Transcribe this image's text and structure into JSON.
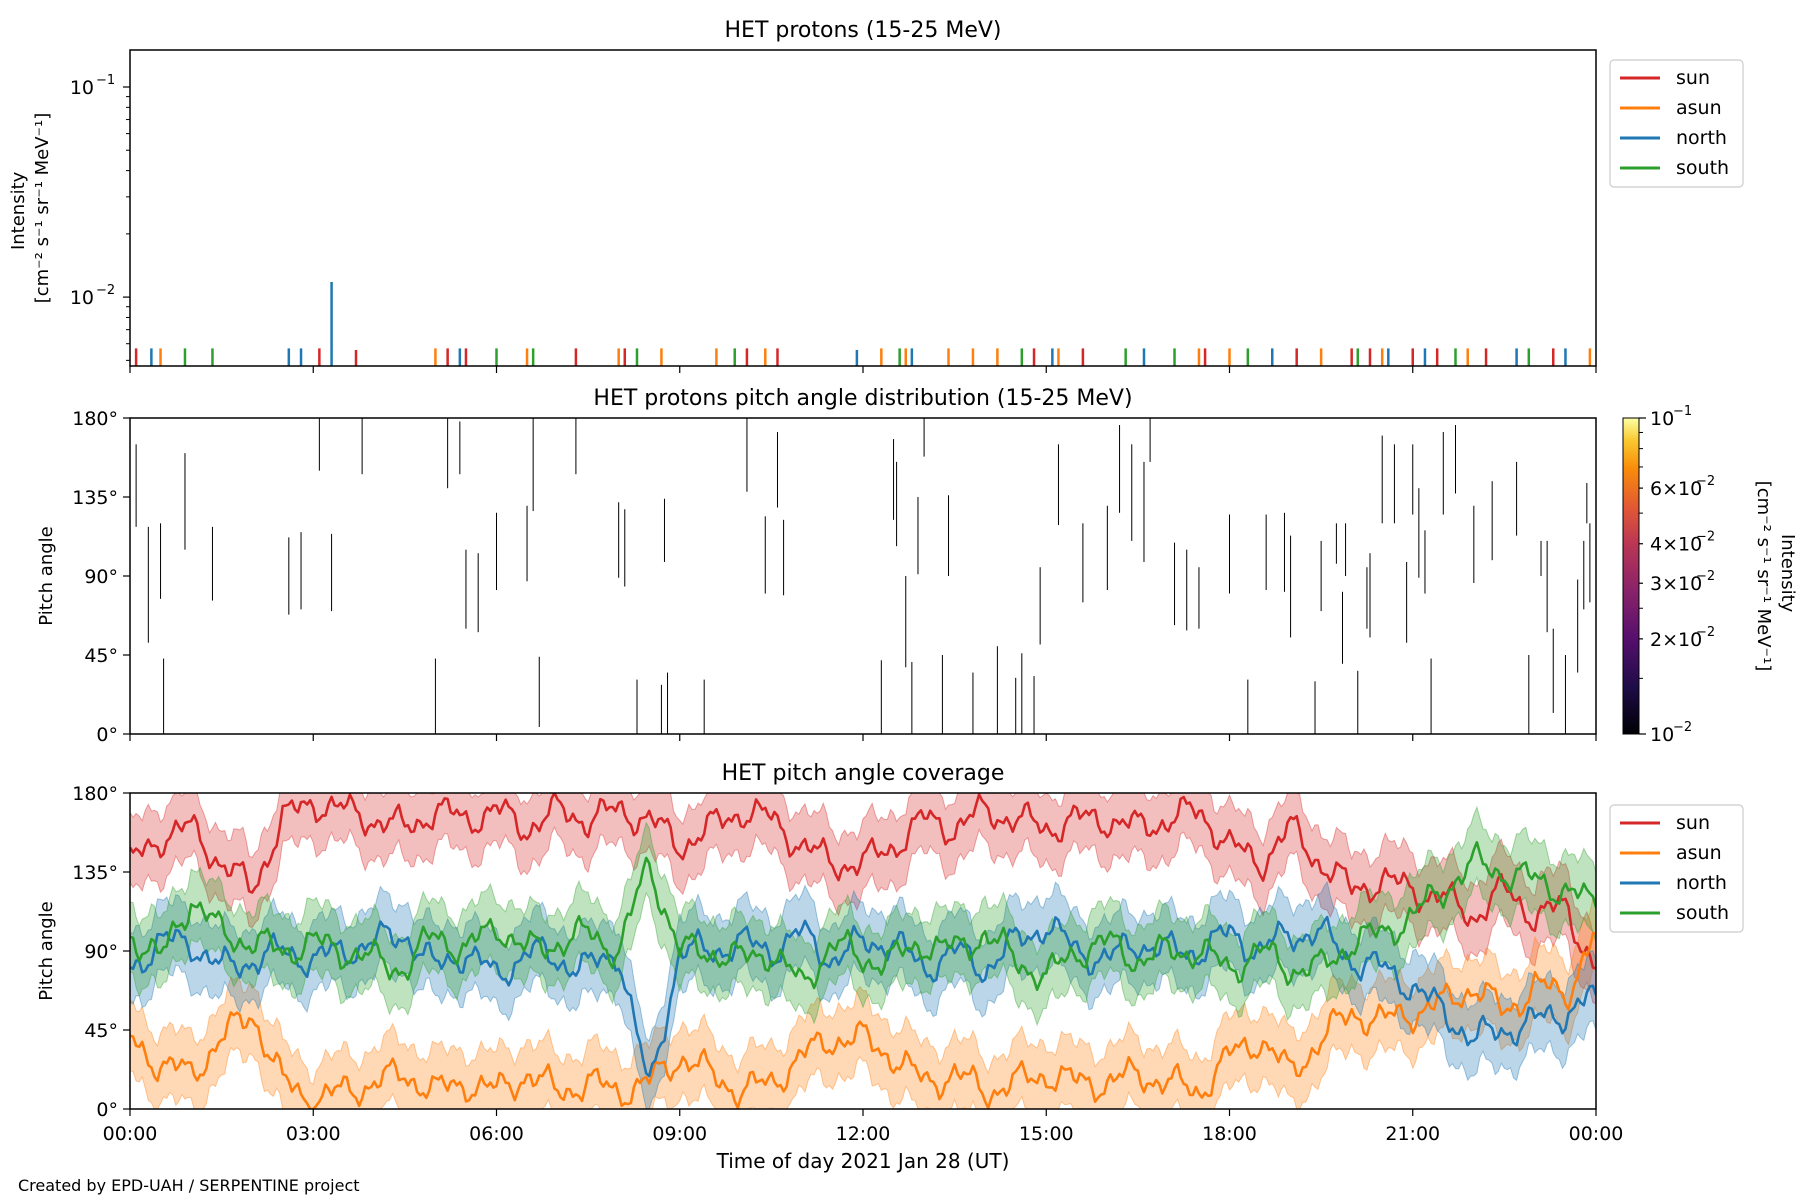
{
  "footer": "Created by EPD-UAH / SERPENTINE project",
  "colors": {
    "sun": "#d62728",
    "asun": "#ff7f0e",
    "north": "#1f77b4",
    "south": "#2ca02c"
  },
  "chart_data": [
    {
      "type": "line",
      "title": "HET protons (15-25 MeV)",
      "ylabel": "Intensity [cm⁻² s⁻¹ sr⁻¹ MeV⁻¹]",
      "ylabel_line1": "Intensity",
      "ylabel_line2": "[cm⁻² s⁻¹ sr⁻¹ MeV⁻¹]",
      "yscale": "log",
      "ylim": [
        0.0047,
        0.15
      ],
      "yticks": [
        {
          "value": 0.1,
          "base": "10",
          "exp": "−1"
        },
        {
          "value": 0.01,
          "base": "10",
          "exp": "−2"
        }
      ],
      "xlim_hours": [
        0,
        24
      ],
      "legend_position": "upper right outside",
      "legend": [
        "sun",
        "asun",
        "north",
        "south"
      ],
      "series": [
        {
          "name": "sun",
          "spikes": [
            [
              0.1,
              0.0057
            ],
            [
              3.1,
              0.0057
            ],
            [
              3.7,
              0.0056
            ],
            [
              5.2,
              0.0057
            ],
            [
              5.5,
              0.0057
            ],
            [
              7.3,
              0.0057
            ],
            [
              8.1,
              0.0057
            ],
            [
              10.1,
              0.0057
            ],
            [
              10.6,
              0.0057
            ],
            [
              14.8,
              0.0057
            ],
            [
              15.6,
              0.0057
            ],
            [
              17.6,
              0.0057
            ],
            [
              19.1,
              0.0057
            ],
            [
              20.0,
              0.0057
            ],
            [
              20.3,
              0.0057
            ],
            [
              21.0,
              0.0057
            ],
            [
              21.4,
              0.0057
            ],
            [
              22.2,
              0.0057
            ],
            [
              23.3,
              0.0057
            ]
          ]
        },
        {
          "name": "asun",
          "spikes": [
            [
              0.5,
              0.0057
            ],
            [
              5.0,
              0.0057
            ],
            [
              6.5,
              0.0057
            ],
            [
              8.0,
              0.0057
            ],
            [
              8.7,
              0.0057
            ],
            [
              9.6,
              0.0057
            ],
            [
              10.4,
              0.0057
            ],
            [
              12.3,
              0.0057
            ],
            [
              12.7,
              0.0057
            ],
            [
              13.4,
              0.0057
            ],
            [
              13.8,
              0.0057
            ],
            [
              14.2,
              0.0057
            ],
            [
              15.2,
              0.0057
            ],
            [
              17.5,
              0.0057
            ],
            [
              18.0,
              0.0057
            ],
            [
              19.5,
              0.0057
            ],
            [
              20.5,
              0.0057
            ],
            [
              21.9,
              0.0057
            ],
            [
              23.9,
              0.0057
            ]
          ]
        },
        {
          "name": "north",
          "spikes": [
            [
              0.35,
              0.0057
            ],
            [
              2.6,
              0.0057
            ],
            [
              2.8,
              0.0057
            ],
            [
              3.3,
              0.0118
            ],
            [
              5.4,
              0.0057
            ],
            [
              11.9,
              0.0056
            ],
            [
              12.8,
              0.0057
            ],
            [
              15.1,
              0.0057
            ],
            [
              16.6,
              0.0057
            ],
            [
              18.7,
              0.0057
            ],
            [
              20.6,
              0.0057
            ],
            [
              21.2,
              0.0057
            ],
            [
              22.7,
              0.0057
            ],
            [
              23.5,
              0.0057
            ]
          ]
        },
        {
          "name": "south",
          "spikes": [
            [
              0.9,
              0.0057
            ],
            [
              1.35,
              0.0057
            ],
            [
              6.0,
              0.0057
            ],
            [
              6.6,
              0.0057
            ],
            [
              8.3,
              0.0057
            ],
            [
              9.9,
              0.0057
            ],
            [
              12.6,
              0.0057
            ],
            [
              14.6,
              0.0057
            ],
            [
              16.3,
              0.0057
            ],
            [
              17.1,
              0.0057
            ],
            [
              18.3,
              0.0057
            ],
            [
              20.1,
              0.0057
            ],
            [
              21.7,
              0.0057
            ],
            [
              22.9,
              0.0057
            ]
          ]
        }
      ]
    },
    {
      "type": "heatmap",
      "title": "HET protons pitch angle distribution (15-25 MeV)",
      "ylabel": "Pitch angle",
      "ylim": [
        0,
        180
      ],
      "yticks": [
        "0°",
        "45°",
        "90°",
        "135°",
        "180°"
      ],
      "xlim_hours": [
        0,
        24
      ],
      "colorbar_label": "Intensity [cm⁻² s⁻¹ sr⁻¹ MeV⁻¹]",
      "colorbar_label_line1": "Intensity",
      "colorbar_label_line2": "[cm⁻² s⁻¹ sr⁻¹ MeV⁻¹]",
      "colorbar_scale": "log",
      "colorbar_range": [
        0.01,
        0.1
      ],
      "colorbar_ticks": [
        {
          "value": 0.1,
          "label": "10",
          "exp": "−1"
        },
        {
          "value": 0.06,
          "label": "6×10",
          "exp": "−2"
        },
        {
          "value": 0.04,
          "label": "4×10",
          "exp": "−2"
        },
        {
          "value": 0.03,
          "label": "3×10",
          "exp": "−2"
        },
        {
          "value": 0.02,
          "label": "2×10",
          "exp": "−2"
        },
        {
          "value": 0.01,
          "label": "10",
          "exp": "−2"
        }
      ],
      "segments": [
        [
          0.1,
          118,
          165
        ],
        [
          0.3,
          52,
          118
        ],
        [
          0.5,
          77,
          120
        ],
        [
          0.55,
          0,
          43
        ],
        [
          0.9,
          105,
          160
        ],
        [
          1.35,
          76,
          118
        ],
        [
          2.6,
          68,
          112
        ],
        [
          2.8,
          71,
          115
        ],
        [
          3.1,
          150,
          180
        ],
        [
          3.3,
          70,
          114
        ],
        [
          3.8,
          148,
          180
        ],
        [
          5.0,
          0,
          43
        ],
        [
          5.2,
          140,
          180
        ],
        [
          5.4,
          148,
          178
        ],
        [
          5.5,
          60,
          105
        ],
        [
          5.7,
          58,
          103
        ],
        [
          6.0,
          82,
          126
        ],
        [
          6.5,
          87,
          130
        ],
        [
          6.6,
          127,
          180
        ],
        [
          6.7,
          4,
          44
        ],
        [
          7.3,
          148,
          180
        ],
        [
          8.0,
          89,
          132
        ],
        [
          8.1,
          84,
          128
        ],
        [
          8.3,
          0,
          31
        ],
        [
          8.7,
          0,
          28
        ],
        [
          8.75,
          98,
          134
        ],
        [
          8.8,
          0,
          35
        ],
        [
          9.4,
          0,
          31
        ],
        [
          10.1,
          138,
          180
        ],
        [
          10.4,
          80,
          124
        ],
        [
          10.6,
          129,
          172
        ],
        [
          10.7,
          79,
          122
        ],
        [
          12.3,
          0,
          42
        ],
        [
          12.5,
          122,
          168
        ],
        [
          12.55,
          107,
          155
        ],
        [
          12.7,
          38,
          90
        ],
        [
          12.8,
          0,
          41
        ],
        [
          12.9,
          91,
          135
        ],
        [
          13.0,
          158,
          180
        ],
        [
          13.3,
          0,
          45
        ],
        [
          13.4,
          90,
          136
        ],
        [
          13.8,
          0,
          35
        ],
        [
          14.2,
          0,
          50
        ],
        [
          14.5,
          0,
          32
        ],
        [
          14.6,
          0,
          46
        ],
        [
          14.8,
          0,
          33
        ],
        [
          14.9,
          51,
          95
        ],
        [
          15.2,
          119,
          165
        ],
        [
          15.6,
          75,
          120
        ],
        [
          16.0,
          82,
          130
        ],
        [
          16.2,
          126,
          176
        ],
        [
          16.4,
          110,
          165
        ],
        [
          16.6,
          98,
          155
        ],
        [
          16.7,
          155,
          180
        ],
        [
          17.1,
          62,
          109
        ],
        [
          17.3,
          59,
          105
        ],
        [
          17.5,
          60,
          95
        ],
        [
          18.0,
          80,
          125
        ],
        [
          18.3,
          0,
          31
        ],
        [
          18.6,
          82,
          125
        ],
        [
          18.9,
          81,
          126
        ],
        [
          19.0,
          55,
          113
        ],
        [
          19.4,
          0,
          30
        ],
        [
          19.5,
          70,
          110
        ],
        [
          19.75,
          97,
          120
        ],
        [
          19.85,
          40,
          81
        ],
        [
          19.9,
          90,
          120
        ],
        [
          20.1,
          0,
          36
        ],
        [
          20.25,
          60,
          95
        ],
        [
          20.3,
          55,
          103
        ],
        [
          20.5,
          120,
          170
        ],
        [
          20.7,
          120,
          165
        ],
        [
          20.9,
          52,
          98
        ],
        [
          21.0,
          125,
          165
        ],
        [
          21.1,
          89,
          140
        ],
        [
          21.2,
          80,
          116
        ],
        [
          21.3,
          0,
          43
        ],
        [
          21.5,
          125,
          172
        ],
        [
          21.7,
          137,
          176
        ],
        [
          22.0,
          86,
          130
        ],
        [
          22.3,
          99,
          144
        ],
        [
          22.7,
          113,
          155
        ],
        [
          22.9,
          0,
          45
        ],
        [
          23.1,
          90,
          110
        ],
        [
          23.2,
          58,
          110
        ],
        [
          23.3,
          12,
          60
        ],
        [
          23.5,
          0,
          45
        ],
        [
          23.7,
          35,
          88
        ],
        [
          23.8,
          71,
          110
        ],
        [
          23.85,
          120,
          143
        ],
        [
          23.9,
          75,
          120
        ],
        [
          24.0,
          54,
          90
        ]
      ]
    },
    {
      "type": "area",
      "title": "HET pitch angle coverage",
      "xlabel": "Time of day 2021 Jan 28 (UT)",
      "ylabel": "Pitch angle",
      "ylim": [
        0,
        180
      ],
      "yticks": [
        "0°",
        "45°",
        "90°",
        "135°",
        "180°"
      ],
      "xticks": [
        "00:00",
        "03:00",
        "06:00",
        "09:00",
        "12:00",
        "15:00",
        "18:00",
        "21:00",
        "00:00"
      ],
      "xlim_hours": [
        0,
        24
      ],
      "legend_position": "upper right outside",
      "legend": [
        "sun",
        "asun",
        "north",
        "south"
      ],
      "x": [
        0,
        0.5,
        1,
        1.5,
        2,
        2.5,
        3,
        3.5,
        4,
        4.5,
        5,
        5.5,
        6,
        6.5,
        7,
        7.5,
        8,
        8.5,
        9,
        9.5,
        10,
        10.5,
        11,
        11.5,
        12,
        12.5,
        13,
        13.5,
        14,
        14.5,
        15,
        15.5,
        16,
        16.5,
        17,
        17.5,
        18,
        18.5,
        19,
        19.5,
        20,
        20.5,
        21,
        21.5,
        22,
        22.5,
        23,
        23.5,
        24
      ],
      "band_halfwidth_deg": 20,
      "series": [
        {
          "name": "sun",
          "values": [
            140,
            155,
            160,
            140,
            125,
            165,
            175,
            170,
            165,
            160,
            170,
            165,
            170,
            160,
            170,
            165,
            170,
            165,
            150,
            160,
            170,
            165,
            150,
            140,
            140,
            150,
            165,
            160,
            170,
            165,
            160,
            165,
            165,
            160,
            165,
            170,
            150,
            140,
            160,
            140,
            125,
            130,
            125,
            120,
            110,
            125,
            110,
            115,
            80
          ]
        },
        {
          "name": "asun",
          "values": [
            40,
            25,
            20,
            40,
            55,
            15,
            5,
            10,
            15,
            20,
            10,
            15,
            10,
            20,
            10,
            15,
            10,
            15,
            30,
            20,
            10,
            15,
            30,
            40,
            40,
            30,
            15,
            20,
            10,
            15,
            20,
            15,
            15,
            20,
            15,
            10,
            30,
            40,
            20,
            40,
            55,
            50,
            55,
            60,
            70,
            55,
            70,
            65,
            100
          ]
        },
        {
          "name": "north",
          "values": [
            80,
            95,
            95,
            80,
            85,
            90,
            85,
            90,
            95,
            100,
            80,
            90,
            75,
            90,
            85,
            80,
            90,
            10,
            90,
            90,
            95,
            90,
            100,
            85,
            95,
            95,
            80,
            90,
            80,
            95,
            105,
            90,
            85,
            95,
            90,
            90,
            100,
            90,
            100,
            100,
            85,
            80,
            70,
            55,
            40,
            45,
            50,
            55,
            65
          ]
        },
        {
          "name": "south",
          "values": [
            100,
            85,
            120,
            100,
            95,
            90,
            95,
            90,
            85,
            80,
            100,
            90,
            105,
            90,
            95,
            100,
            90,
            140,
            90,
            90,
            85,
            90,
            70,
            95,
            85,
            85,
            95,
            90,
            100,
            85,
            75,
            90,
            95,
            85,
            90,
            90,
            80,
            90,
            80,
            80,
            95,
            100,
            110,
            125,
            140,
            135,
            130,
            125,
            115
          ]
        }
      ]
    }
  ]
}
